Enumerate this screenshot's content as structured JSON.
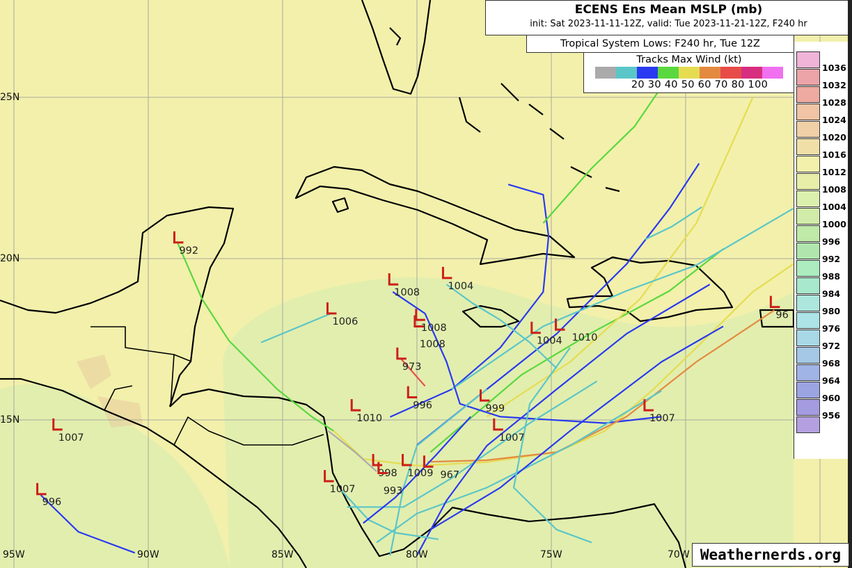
{
  "header": {
    "title": "ECENS Ens Mean MSLP (mb)",
    "subtitle": "init: Sat 2023-11-11-12Z, valid: Tue 2023-11-21-12Z, F240 hr",
    "lows_caption": "Tropical System Lows: F240 hr, Tue 12Z"
  },
  "legend": {
    "title": "Tracks Max Wind (kt)",
    "labels": "20 30 40 50 60 70 80 100",
    "colors": [
      "#aaaaaa",
      "#5bc6c8",
      "#2a3af0",
      "#5ad840",
      "#e6dc52",
      "#e48a40",
      "#e84c48",
      "#d82e80",
      "#f070f0"
    ]
  },
  "colorbar": {
    "levels": [
      "1036",
      "1032",
      "1028",
      "1024",
      "1020",
      "1016",
      "1012",
      "1008",
      "1004",
      "1000",
      "996",
      "992",
      "988",
      "984",
      "980",
      "976",
      "972",
      "968",
      "964",
      "960",
      "956"
    ],
    "colors": [
      "#f0b4d8",
      "#eca4a8",
      "#eeaaa0",
      "#f0c4a4",
      "#f0d0a6",
      "#f0e0a8",
      "#f2f0ab",
      "#e8eea8",
      "#dcf0ae",
      "#d0eca8",
      "#c0eaa8",
      "#b0e6ae",
      "#acecbe",
      "#a8e8cc",
      "#ace6dc",
      "#ace4e8",
      "#a8d8e6",
      "#a4c8e6",
      "#a0b4e6",
      "#9ca4e2",
      "#a49ce0",
      "#b4a0e0"
    ]
  },
  "axes": {
    "lat_labels": [
      {
        "lat": 25,
        "text": "25N"
      },
      {
        "lat": 20,
        "text": "20N"
      },
      {
        "lat": 15,
        "text": "15N"
      }
    ],
    "lon_labels": [
      {
        "lon": -95,
        "text": "95W"
      },
      {
        "lon": -90,
        "text": "90W"
      },
      {
        "lon": -85,
        "text": "85W"
      },
      {
        "lon": -80,
        "text": "80W"
      },
      {
        "lon": -75,
        "text": "75W"
      },
      {
        "lon": -70,
        "text": "70W"
      }
    ]
  },
  "lows": [
    {
      "lon": -88.9,
      "lat": 20.5,
      "mslp": "992"
    },
    {
      "lon": -80.9,
      "lat": 19.2,
      "mslp": "1008"
    },
    {
      "lon": -78.9,
      "lat": 19.4,
      "mslp": "1004"
    },
    {
      "lon": -83.2,
      "lat": 18.3,
      "mslp": "1006"
    },
    {
      "lon": -79.9,
      "lat": 18.1,
      "mslp": "1008"
    },
    {
      "lon": -79.95,
      "lat": 17.9,
      "mslp": "1008"
    },
    {
      "lon": -75.6,
      "lat": 17.7,
      "mslp": "1004"
    },
    {
      "lon": -74.7,
      "lat": 17.8,
      "mslp": "1010"
    },
    {
      "lon": -80.6,
      "lat": 16.9,
      "mslp": "973"
    },
    {
      "lon": -80.2,
      "lat": 15.7,
      "mslp": "996"
    },
    {
      "lon": -77.5,
      "lat": 15.6,
      "mslp": "999"
    },
    {
      "lon": -82.3,
      "lat": 15.3,
      "mslp": "1010"
    },
    {
      "lon": -71.4,
      "lat": 15.3,
      "mslp": "1007"
    },
    {
      "lon": -93.4,
      "lat": 14.7,
      "mslp": "1007"
    },
    {
      "lon": -77.0,
      "lat": 14.7,
      "mslp": "1007"
    },
    {
      "lon": -81.5,
      "lat": 13.6,
      "mslp": "998"
    },
    {
      "lon": -81.3,
      "lat": 13.35,
      "mslp": "993"
    },
    {
      "lon": -80.4,
      "lat": 13.6,
      "mslp": "1009"
    },
    {
      "lon": -79.6,
      "lat": 13.55,
      "mslp": "967"
    },
    {
      "lon": -83.3,
      "lat": 13.1,
      "mslp": "1007"
    },
    {
      "lon": -94.0,
      "lat": 12.7,
      "mslp": "996"
    },
    {
      "lon": -66.7,
      "lat": 18.5,
      "mslp": "96"
    }
  ],
  "tracks": [
    {
      "wind": 50,
      "pts": [
        [
          -88.9,
          20.47
        ],
        [
          -88.0,
          18.75
        ],
        [
          -87.0,
          17.46
        ],
        [
          -85.2,
          15.95
        ],
        [
          -83.9,
          15.09
        ],
        [
          -83.1,
          14.66
        ]
      ]
    },
    {
      "wind": 60,
      "pts": [
        [
          -83.1,
          14.66
        ],
        [
          -82.0,
          13.79
        ],
        [
          -80.0,
          13.58
        ],
        [
          -77.4,
          13.69
        ],
        [
          -74.8,
          14.0
        ],
        [
          -73.0,
          14.66
        ],
        [
          -71.2,
          15.95
        ],
        [
          -69.6,
          17.24
        ],
        [
          -67.5,
          18.97
        ],
        [
          -66.0,
          19.83
        ]
      ]
    },
    {
      "wind": 40,
      "pts": [
        [
          -81.0,
          15.09
        ],
        [
          -78.7,
          15.95
        ],
        [
          -76.9,
          17.24
        ],
        [
          -75.3,
          18.97
        ],
        [
          -75.1,
          20.69
        ],
        [
          -75.3,
          21.98
        ],
        [
          -76.6,
          22.3
        ]
      ]
    },
    {
      "wind": 40,
      "pts": [
        [
          -80.0,
          14.22
        ],
        [
          -77.4,
          15.95
        ],
        [
          -74.8,
          17.67
        ],
        [
          -72.2,
          19.83
        ],
        [
          -70.6,
          21.55
        ],
        [
          -69.5,
          22.95
        ]
      ]
    },
    {
      "wind": 50,
      "pts": [
        [
          -75.3,
          21.1
        ],
        [
          -73.5,
          22.8
        ],
        [
          -71.9,
          24.1
        ],
        [
          -71.0,
          25.2
        ]
      ]
    },
    {
      "wind": 50,
      "pts": [
        [
          -79.5,
          14.0
        ],
        [
          -76.1,
          16.4
        ],
        [
          -73.5,
          17.7
        ],
        [
          -70.6,
          19.0
        ],
        [
          -68.6,
          20.3
        ]
      ]
    },
    {
      "wind": 60,
      "pts": [
        [
          -77.4,
          15.1
        ],
        [
          -74.3,
          16.8
        ],
        [
          -71.7,
          18.75
        ],
        [
          -69.6,
          21.1
        ],
        [
          -67.5,
          25.0
        ]
      ]
    },
    {
      "wind": 30,
      "pts": [
        [
          -78.7,
          15.95
        ],
        [
          -75.3,
          17.9
        ],
        [
          -72.2,
          19.0
        ],
        [
          -69.6,
          19.8
        ],
        [
          -66.0,
          21.55
        ]
      ]
    },
    {
      "wind": 40,
      "pts": [
        [
          -94.0,
          12.67
        ],
        [
          -92.6,
          11.53
        ],
        [
          -90.5,
          10.88
        ]
      ]
    },
    {
      "wind": 30,
      "pts": [
        [
          -85.8,
          17.4
        ],
        [
          -83.2,
          18.3
        ]
      ]
    },
    {
      "wind": 40,
      "pts": [
        [
          -80.9,
          18.97
        ],
        [
          -79.7,
          18.3
        ],
        [
          -78.9,
          16.8
        ],
        [
          -78.4,
          15.5
        ],
        [
          -76.9,
          15.1
        ],
        [
          -73.0,
          14.9
        ],
        [
          -70.9,
          15.1
        ]
      ]
    },
    {
      "wind": 80,
      "pts": [
        [
          -80.6,
          16.9
        ],
        [
          -79.7,
          16.05
        ]
      ]
    },
    {
      "wind": 70,
      "pts": [
        [
          -79.6,
          13.7
        ],
        [
          -77.4,
          13.75
        ],
        [
          -74.8,
          14.0
        ],
        [
          -72.2,
          15.1
        ],
        [
          -69.6,
          16.8
        ],
        [
          -66.7,
          18.4
        ]
      ]
    },
    {
      "wind": 30,
      "pts": [
        [
          -82.6,
          12.3
        ],
        [
          -80.5,
          12.3
        ],
        [
          -78.7,
          13.2
        ],
        [
          -75.8,
          14.9
        ],
        [
          -73.3,
          16.2
        ]
      ]
    },
    {
      "wind": 30,
      "pts": [
        [
          -81.5,
          11.2
        ],
        [
          -80.0,
          12.1
        ],
        [
          -77.4,
          12.9
        ],
        [
          -74.3,
          14.2
        ],
        [
          -70.9,
          15.9
        ]
      ]
    },
    {
      "wind": 40,
      "pts": [
        [
          -80.0,
          10.8
        ],
        [
          -78.9,
          12.5
        ],
        [
          -77.4,
          14.2
        ],
        [
          -74.8,
          15.95
        ],
        [
          -72.2,
          17.67
        ],
        [
          -69.1,
          19.2
        ]
      ]
    },
    {
      "wind": 30,
      "pts": [
        [
          -81.0,
          10.8
        ],
        [
          -80.5,
          12.9
        ],
        [
          -80.0,
          14.2
        ],
        [
          -77.4,
          15.95
        ]
      ]
    },
    {
      "wind": 40,
      "pts": [
        [
          -79.5,
          11.6
        ],
        [
          -76.9,
          12.9
        ],
        [
          -74.3,
          14.66
        ],
        [
          -70.9,
          16.8
        ],
        [
          -68.6,
          17.9
        ]
      ]
    },
    {
      "wind": 20,
      "pts": [
        [
          -83.3,
          14.66
        ],
        [
          -82.3,
          14.0
        ],
        [
          -81.5,
          13.4
        ]
      ]
    },
    {
      "wind": 30,
      "pts": [
        [
          -74.3,
          17.24
        ],
        [
          -75.8,
          15.5
        ],
        [
          -76.4,
          12.9
        ],
        [
          -74.8,
          11.6
        ],
        [
          -73.5,
          11.2
        ]
      ]
    },
    {
      "wind": 30,
      "pts": [
        [
          -78.9,
          19.2
        ],
        [
          -77.9,
          18.6
        ],
        [
          -76.9,
          18.1
        ],
        [
          -75.8,
          17.4
        ],
        [
          -74.8,
          16.6
        ]
      ]
    },
    {
      "wind": 30,
      "pts": [
        [
          -82.8,
          12.8
        ],
        [
          -81.8,
          11.9
        ],
        [
          -80.8,
          11.5
        ],
        [
          -79.2,
          11.3
        ]
      ]
    },
    {
      "wind": 40,
      "pts": [
        [
          -82.0,
          11.8
        ],
        [
          -80.8,
          12.6
        ],
        [
          -79.3,
          13.9
        ],
        [
          -78.0,
          15.1
        ]
      ]
    },
    {
      "wind": 30,
      "pts": [
        [
          -71.5,
          20.6
        ],
        [
          -70.5,
          21.0
        ],
        [
          -69.4,
          21.6
        ]
      ]
    }
  ],
  "branding": {
    "logo": "Weathernerds.org"
  }
}
